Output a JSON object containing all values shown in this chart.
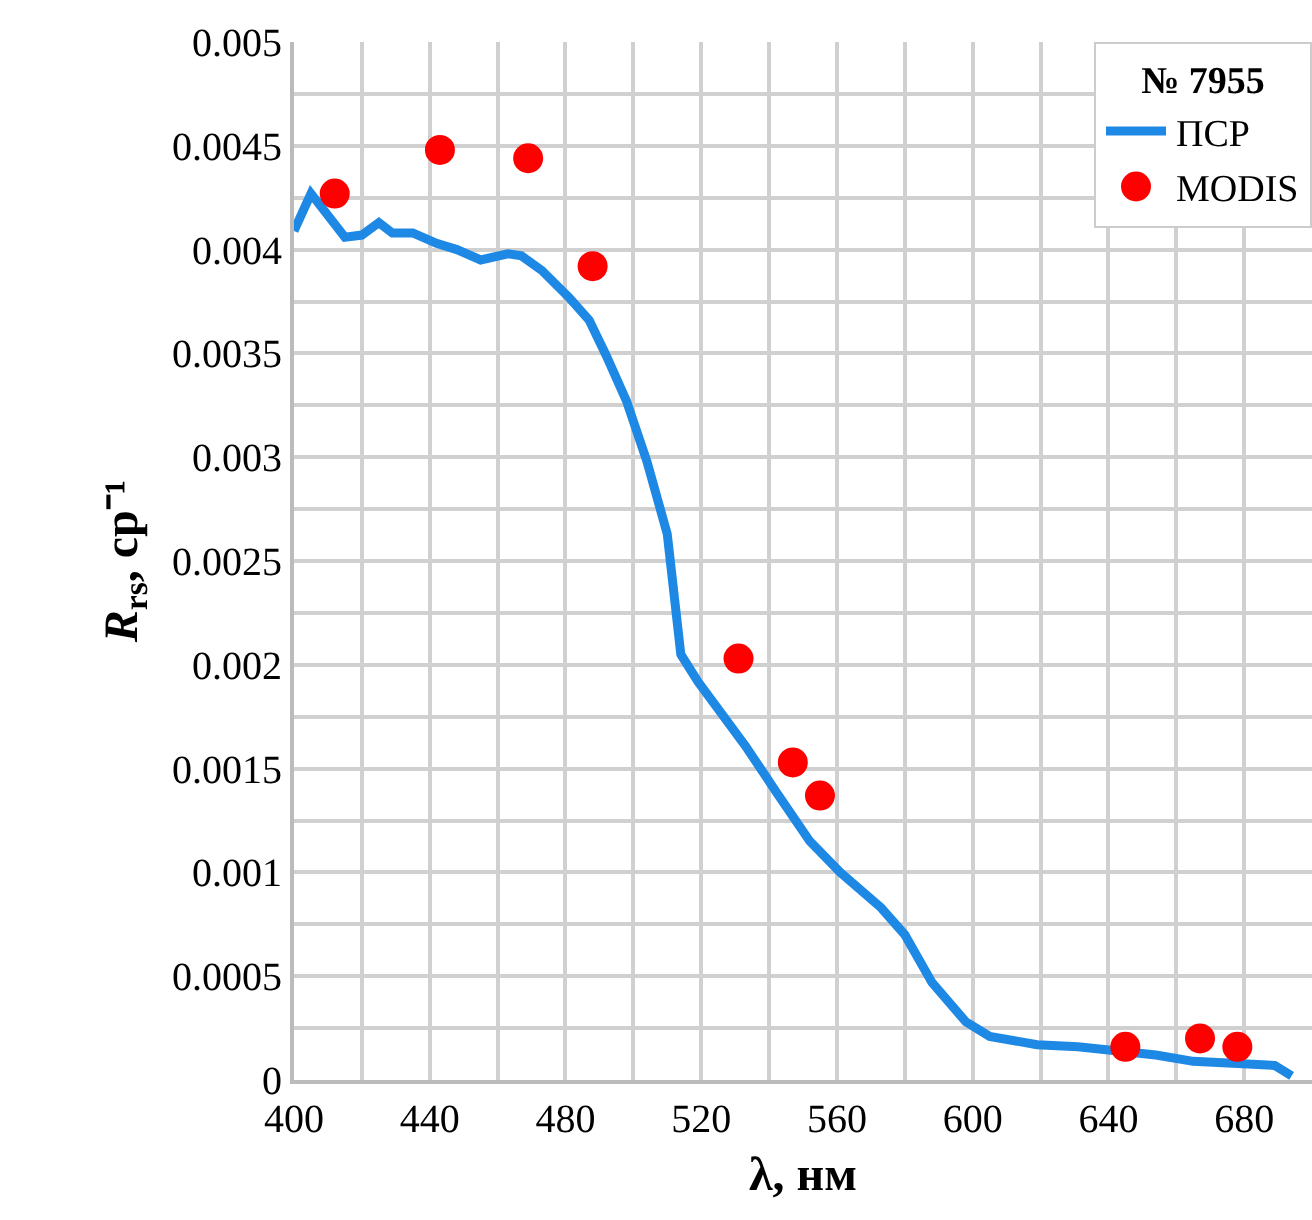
{
  "chart_data": {
    "type": "line",
    "xlabel": "λ, нм",
    "ylabel": "R$_{rs}$, ср⁻¹",
    "legend_title": "№ 7955",
    "series": [
      {
        "name": "ПСР",
        "color": "#1e88e5",
        "marker": "none",
        "line_style": "solid",
        "x": [
          400,
          405,
          415,
          420,
          425,
          429,
          435,
          442,
          448,
          455,
          463,
          467,
          473,
          481,
          487,
          492,
          498,
          504,
          510,
          514,
          519,
          533,
          542,
          552,
          561,
          573,
          580,
          588,
          598,
          605,
          619,
          631,
          654,
          665,
          689,
          694
        ],
        "values": [
          0.00409,
          0.00427,
          0.00406,
          0.00407,
          0.00413,
          0.00408,
          0.00408,
          0.00403,
          0.004,
          0.00395,
          0.00398,
          0.00397,
          0.0039,
          0.00377,
          0.00366,
          0.00349,
          0.00327,
          0.00298,
          0.00263,
          0.00205,
          0.00192,
          0.00161,
          0.00139,
          0.00115,
          0.001,
          0.00083,
          0.0007,
          0.00047,
          0.00028,
          0.00021,
          0.00017,
          0.00016,
          0.00012,
          9e-05,
          7e-05,
          2e-05
        ]
      },
      {
        "name": "MODIS",
        "type": "scatter",
        "color": "#ff0000",
        "marker": "circle",
        "x": [
          412,
          443,
          469,
          488,
          531,
          547,
          555,
          645,
          667,
          678
        ],
        "values": [
          0.00427,
          0.00448,
          0.00444,
          0.00392,
          0.00203,
          0.00153,
          0.00137,
          0.00016,
          0.0002,
          0.00016
        ]
      }
    ],
    "xlim": [
      400,
      700
    ],
    "xticks": [
      400,
      {
        "value": 420,
        "label": null
      },
      440,
      {
        "value": 460,
        "label": null
      },
      480,
      {
        "value": 500,
        "label": null
      },
      520,
      {
        "value": 540,
        "label": null
      },
      560,
      {
        "value": 580,
        "label": null
      },
      600,
      {
        "value": 620,
        "label": null
      },
      640,
      {
        "value": 660,
        "label": null
      },
      680,
      {
        "value": 700,
        "label": null
      }
    ],
    "ylim": [
      0,
      0.005
    ],
    "yticks": [
      0,
      {
        "value": 0.00025,
        "label": null
      },
      0.0005,
      {
        "value": 0.00075,
        "label": null
      },
      0.001,
      {
        "value": 0.00125,
        "label": null
      },
      0.0015,
      {
        "value": 0.00175,
        "label": null
      },
      0.002,
      {
        "value": 0.00225,
        "label": null
      },
      0.0025,
      {
        "value": 0.00275,
        "label": null
      },
      0.003,
      {
        "value": 0.00325,
        "label": null
      },
      0.0035,
      {
        "value": 0.00375,
        "label": null
      },
      0.004,
      {
        "value": 0.00425,
        "label": null
      },
      0.0045,
      {
        "value": 0.00475,
        "label": null
      },
      0.005
    ],
    "grid": true,
    "legend": "top right"
  }
}
